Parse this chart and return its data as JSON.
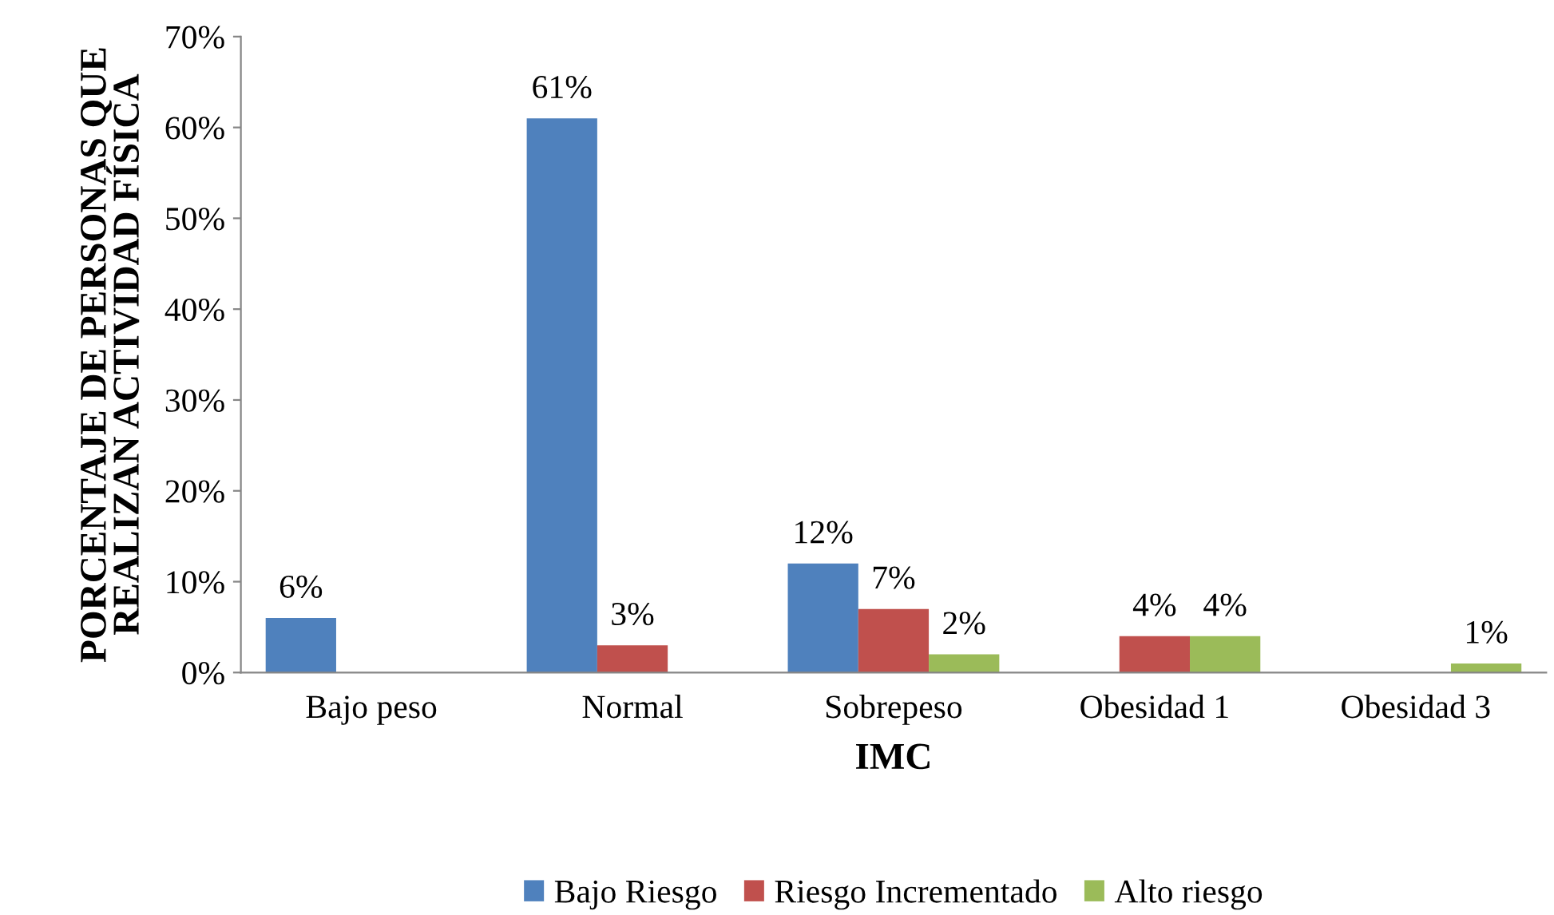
{
  "chart_data": {
    "type": "bar",
    "xlabel": "IMC",
    "ylabel": "PORCENTAJE DE PERSONAS QUE\nREALIZAN ACTIVIDAD FÍSICA",
    "categories": [
      "Bajo peso",
      "Normal",
      "Sobrepeso",
      "Obesidad 1",
      "Obesidad 3"
    ],
    "series": [
      {
        "name": "Bajo Riesgo",
        "color": "#4f81bd",
        "values": [
          6,
          61,
          12,
          null,
          null
        ],
        "value_labels": [
          "6%",
          "61%",
          "12%",
          null,
          null
        ]
      },
      {
        "name": "Riesgo Incrementado",
        "color": "#c0504d",
        "values": [
          null,
          3,
          7,
          4,
          null
        ],
        "value_labels": [
          null,
          "3%",
          "7%",
          "4%",
          null
        ]
      },
      {
        "name": "Alto riesgo",
        "color": "#9bbb59",
        "values": [
          null,
          null,
          2,
          4,
          1
        ],
        "value_labels": [
          null,
          null,
          "2%",
          "4%",
          "1%"
        ]
      }
    ],
    "ylim": [
      0,
      70
    ],
    "yticks": [
      {
        "value": 0,
        "label": "0%"
      },
      {
        "value": 10,
        "label": "10%"
      },
      {
        "value": 20,
        "label": "20%"
      },
      {
        "value": 30,
        "label": "30%"
      },
      {
        "value": 40,
        "label": "40%"
      },
      {
        "value": 50,
        "label": "50%"
      },
      {
        "value": 60,
        "label": "60%"
      },
      {
        "value": 70,
        "label": "70%"
      }
    ],
    "grid": false,
    "legend": "bottom"
  }
}
